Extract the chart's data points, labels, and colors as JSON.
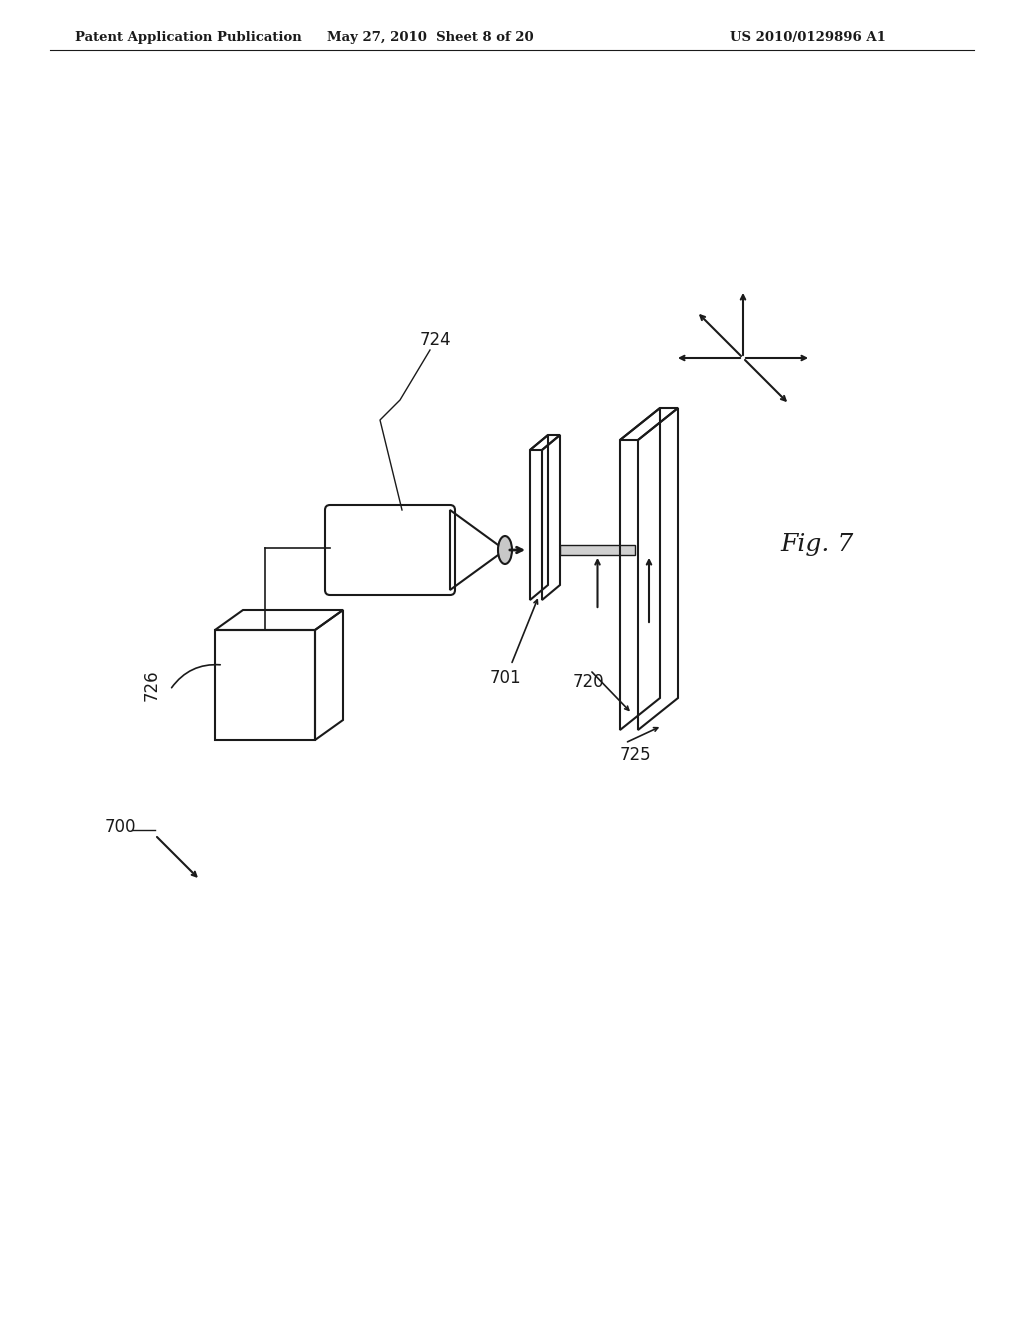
{
  "background_color": "#ffffff",
  "text_color": "#000000",
  "header_left": "Patent Application Publication",
  "header_center": "May 27, 2010  Sheet 8 of 20",
  "header_right": "US 2010/0129896 A1",
  "fig_label": "Fig. 7"
}
